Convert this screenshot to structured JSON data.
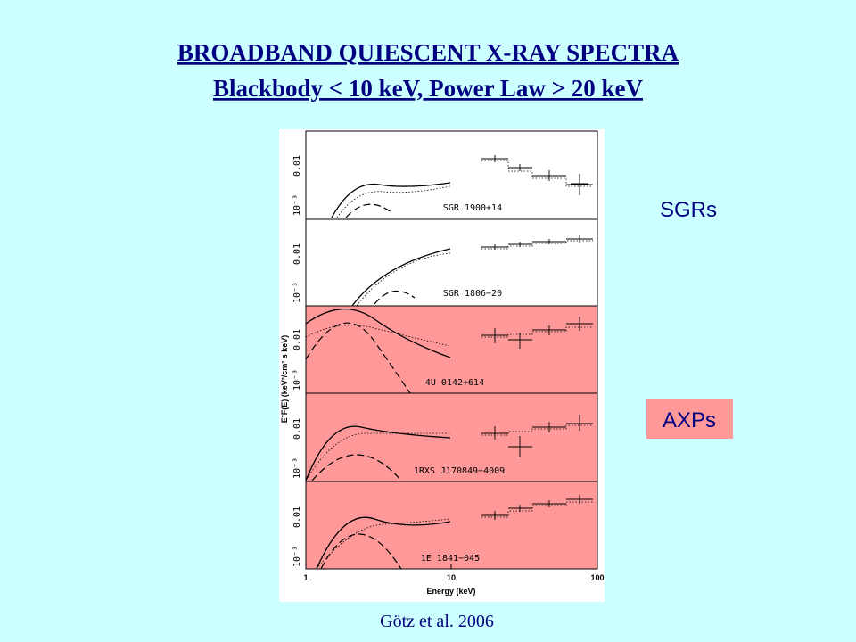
{
  "header": {
    "title": "BROADBAND QUIESCENT X-RAY SPECTRA",
    "subtitle": "Blackbody < 10 keV, Power Law > 20 keV"
  },
  "figure": {
    "panels": [
      {
        "label": "SGR 1900+14",
        "yticks": [
          "0.01",
          "10⁻³"
        ]
      },
      {
        "label": "SGR 1806−20",
        "yticks": [
          "0.01",
          "10⁻³"
        ]
      },
      {
        "label": "4U 0142+614",
        "yticks": [
          "0.01",
          "10⁻³"
        ]
      },
      {
        "label": "1RXS J170849−4009",
        "yticks": [
          "0.01",
          "10⁻³"
        ]
      },
      {
        "label": "1E 1841−045",
        "yticks": [
          "0.01",
          "10⁻³"
        ]
      }
    ],
    "xticks": [
      "1",
      "10",
      "100"
    ],
    "x_label": "Energy (keV)",
    "y_label": "E²F(E) (keV²/cm² s keV)"
  },
  "labels": {
    "sgrs": "SGRs",
    "axps": "AXPs"
  },
  "citation": "Götz et al. 2006"
}
